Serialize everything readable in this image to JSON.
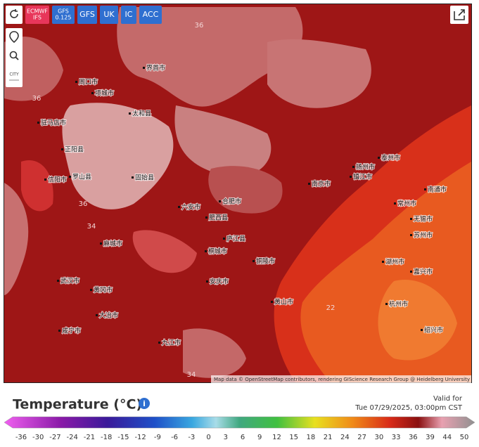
{
  "toolbar": {
    "models": [
      [
        "ECMWF",
        "IFS"
      ],
      [
        "GFS",
        "0.125"
      ],
      [
        "GFS"
      ],
      [
        "UK"
      ],
      [
        "IC"
      ],
      [
        "ACC"
      ]
    ]
  },
  "map_controls": {
    "city_toggle": "CITY"
  },
  "map": {
    "places": [
      "周口市",
      "项城市",
      "界首市",
      "太和县",
      "驻马店市",
      "正阳县",
      "罗山县",
      "信阳市",
      "固始县",
      "六安市",
      "肥西县",
      "合肥市",
      "庐江县",
      "桐城市",
      "麻城市",
      "安庆市",
      "铜陵市",
      "黄冈市",
      "武汉市",
      "大冶市",
      "咸宁市",
      "九江市",
      "南京市",
      "扬州市",
      "泰州市",
      "镇江市",
      "常州市",
      "南通市",
      "无锡市",
      "苏州市",
      "湖州市",
      "嘉兴市",
      "杭州市",
      "绍兴市",
      "黄山市"
    ],
    "contour_labels": [
      "36",
      "36",
      "36",
      "34",
      "22",
      "34"
    ],
    "attribution": "Map data © OpenStreetMap contributors, rendering GIScience Research Group @ Heidelberg University"
  },
  "legend": {
    "title": "Temperature (°C)",
    "valid_label": "Valid for",
    "valid_time": "Tue 07/29/2025, 03:00pm CST",
    "ticks": [
      -36,
      -30,
      -27,
      -24,
      -21,
      -18,
      -15,
      -12,
      -9,
      -6,
      -3,
      0,
      3,
      6,
      9,
      12,
      15,
      18,
      21,
      24,
      27,
      30,
      33,
      36,
      39,
      44,
      50
    ]
  }
}
